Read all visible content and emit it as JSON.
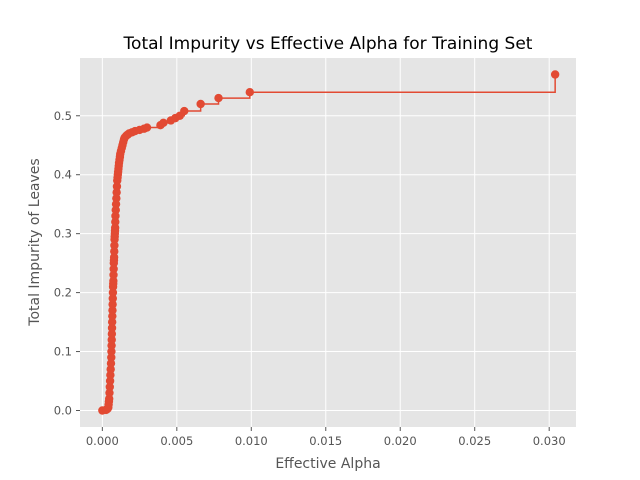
{
  "chart_data": {
    "type": "scatter",
    "title": "Total Impurity vs Effective Alpha for Training Set",
    "xlabel": "Effective Alpha",
    "ylabel": "Total Impurity of Leaves",
    "xlim": [
      -0.0015,
      0.0318
    ],
    "ylim": [
      -0.028,
      0.598
    ],
    "xticks": [
      0.0,
      0.005,
      0.01,
      0.015,
      0.02,
      0.025,
      0.03
    ],
    "xtick_labels": [
      "0.000",
      "0.005",
      "0.010",
      "0.015",
      "0.020",
      "0.025",
      "0.030"
    ],
    "yticks": [
      0.0,
      0.1,
      0.2,
      0.3,
      0.4,
      0.5
    ],
    "ytick_labels": [
      "0.0",
      "0.1",
      "0.2",
      "0.3",
      "0.4",
      "0.5"
    ],
    "grid": true,
    "drawstyle": "steps-post",
    "marker": "o",
    "series": [
      {
        "color": "#E24A33",
        "x": [
          0.0,
          0.00025,
          0.0003,
          0.00035,
          0.0004,
          0.00042,
          0.00044,
          0.00046,
          0.00048,
          0.0005,
          0.00052,
          0.00054,
          0.00056,
          0.00058,
          0.0006,
          0.00061,
          0.00062,
          0.00063,
          0.00064,
          0.00065,
          0.00066,
          0.00067,
          0.00068,
          0.00069,
          0.0007,
          0.00071,
          0.00072,
          0.00073,
          0.00074,
          0.00075,
          0.00076,
          0.00077,
          0.00078,
          0.00079,
          0.0008,
          0.00081,
          0.00082,
          0.00083,
          0.00084,
          0.00085,
          0.00086,
          0.00087,
          0.00088,
          0.0009,
          0.00092,
          0.00094,
          0.00096,
          0.00098,
          0.001,
          0.00102,
          0.00104,
          0.00106,
          0.00108,
          0.0011,
          0.00112,
          0.00115,
          0.00118,
          0.0012,
          0.00125,
          0.0013,
          0.00135,
          0.0014,
          0.00145,
          0.0015,
          0.0016,
          0.0017,
          0.0018,
          0.002,
          0.0022,
          0.0025,
          0.0028,
          0.003,
          0.0039,
          0.0041,
          0.0046,
          0.0049,
          0.0052,
          0.0055,
          0.0066,
          0.0078,
          0.0099,
          0.0304
        ],
        "y": [
          0.0,
          0.001,
          0.002,
          0.003,
          0.005,
          0.01,
          0.015,
          0.02,
          0.03,
          0.04,
          0.05,
          0.06,
          0.07,
          0.08,
          0.09,
          0.1,
          0.11,
          0.12,
          0.13,
          0.14,
          0.15,
          0.16,
          0.17,
          0.18,
          0.19,
          0.2,
          0.21,
          0.215,
          0.22,
          0.23,
          0.24,
          0.25,
          0.255,
          0.26,
          0.27,
          0.28,
          0.29,
          0.295,
          0.3,
          0.305,
          0.31,
          0.32,
          0.33,
          0.34,
          0.35,
          0.36,
          0.37,
          0.38,
          0.39,
          0.395,
          0.4,
          0.405,
          0.41,
          0.415,
          0.42,
          0.425,
          0.43,
          0.435,
          0.44,
          0.445,
          0.45,
          0.455,
          0.46,
          0.463,
          0.466,
          0.468,
          0.47,
          0.472,
          0.474,
          0.476,
          0.478,
          0.48,
          0.484,
          0.488,
          0.492,
          0.496,
          0.5,
          0.508,
          0.52,
          0.53,
          0.54,
          0.57
        ]
      }
    ]
  }
}
